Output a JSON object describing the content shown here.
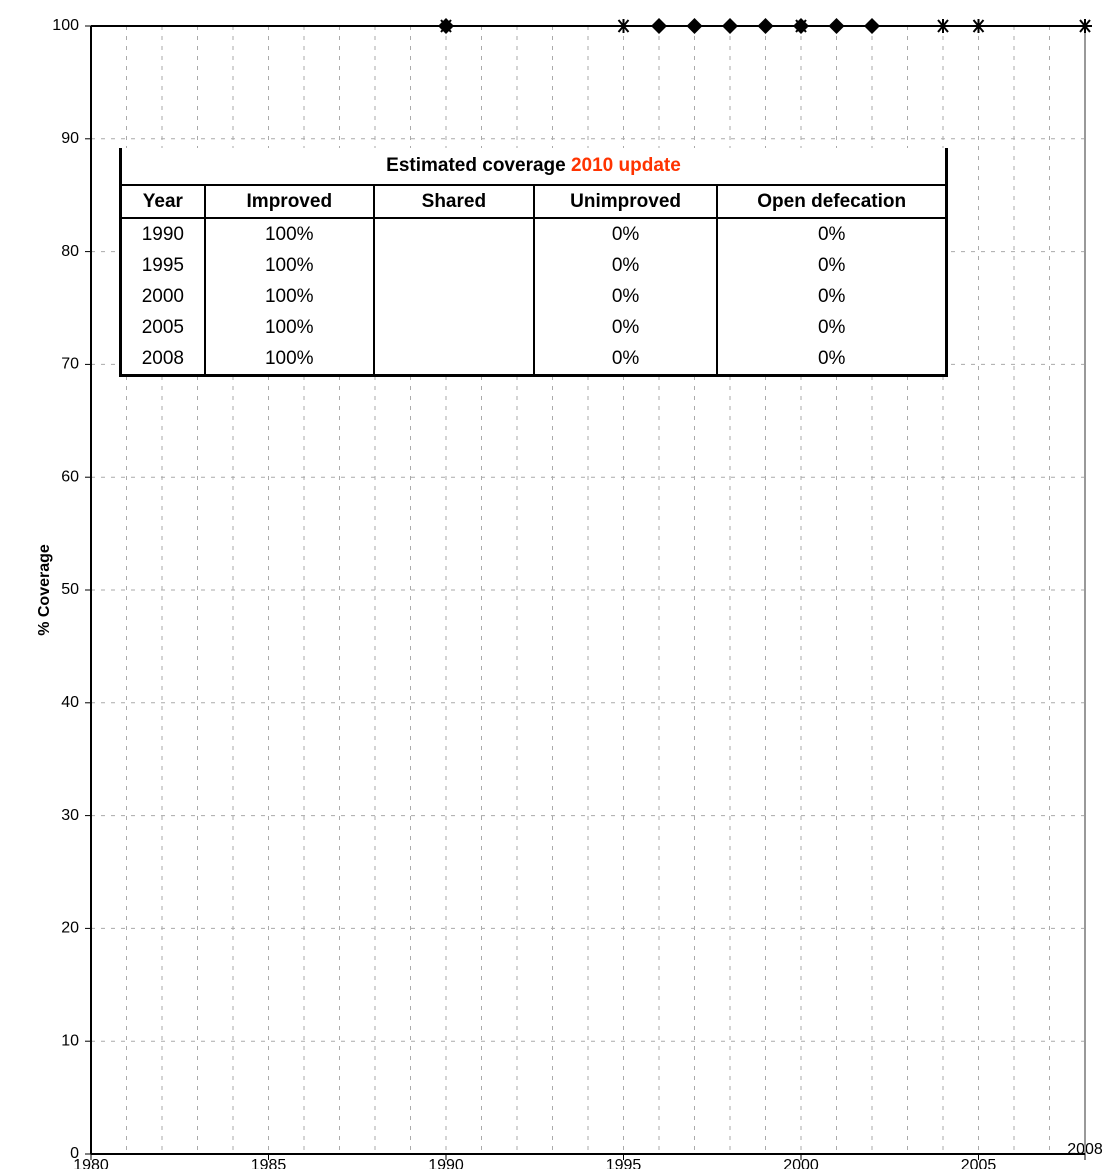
{
  "chart_data": {
    "type": "scatter",
    "y_label": "% Coverage",
    "xlim": [
      1980,
      2008
    ],
    "ylim": [
      0,
      100
    ],
    "xticks": [
      1980,
      1985,
      1990,
      1995,
      2000,
      2005,
      2008
    ],
    "yticks": [
      0,
      10,
      20,
      30,
      40,
      50,
      60,
      70,
      80,
      90,
      100
    ],
    "grid": true,
    "series": [
      {
        "marker": "asterisk",
        "color": "#000000",
        "x": [
          1990,
          1995,
          2000,
          2004,
          2005,
          2008
        ],
        "values": [
          100,
          100,
          100,
          100,
          100,
          100
        ]
      },
      {
        "marker": "diamond",
        "color": "#000000",
        "x": [
          1990,
          1996,
          1997,
          1998,
          1999,
          2000,
          2001,
          2002
        ],
        "values": [
          100,
          100,
          100,
          100,
          100,
          100,
          100,
          100
        ]
      }
    ]
  },
  "table": {
    "title": "Estimated coverage ",
    "title_highlight": "2010 update",
    "header": [
      "Year",
      "Improved",
      "Shared",
      "Unimproved",
      "Open defecation"
    ],
    "rows": [
      [
        "1990",
        "100%",
        "",
        "0%",
        "0%"
      ],
      [
        "1995",
        "100%",
        "",
        "0%",
        "0%"
      ],
      [
        "2000",
        "100%",
        "",
        "0%",
        "0%"
      ],
      [
        "2005",
        "100%",
        "",
        "0%",
        "0%"
      ],
      [
        "2008",
        "100%",
        "",
        "0%",
        "0%"
      ]
    ]
  }
}
